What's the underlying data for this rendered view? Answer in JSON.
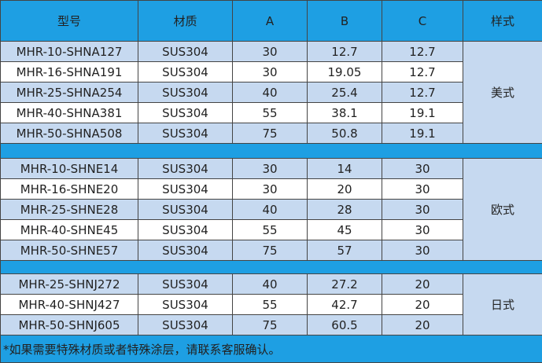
{
  "table": {
    "header": [
      "型号",
      "材质",
      "A",
      "B",
      "C",
      "样式"
    ],
    "groups": [
      {
        "style": "美式",
        "rows": [
          [
            "MHR-10-SHNA127",
            "SUS304",
            "30",
            "12.7",
            "12.7"
          ],
          [
            "MHR-16-SHNA191",
            "SUS304",
            "30",
            "19.05",
            "12.7"
          ],
          [
            "MHR-25-SHNA254",
            "SUS304",
            "40",
            "25.4",
            "12.7"
          ],
          [
            "MHR-40-SHNA381",
            "SUS304",
            "55",
            "38.1",
            "19.1"
          ],
          [
            "MHR-50-SHNA508",
            "SUS304",
            "75",
            "50.8",
            "19.1"
          ]
        ]
      },
      {
        "style": "欧式",
        "rows": [
          [
            "MHR-10-SHNE14",
            "SUS304",
            "30",
            "14",
            "30"
          ],
          [
            "MHR-16-SHNE20",
            "SUS304",
            "30",
            "20",
            "30"
          ],
          [
            "MHR-25-SHNE28",
            "SUS304",
            "40",
            "28",
            "30"
          ],
          [
            "MHR-40-SHNE45",
            "SUS304",
            "55",
            "45",
            "30"
          ],
          [
            "MHR-50-SHNE57",
            "SUS304",
            "75",
            "57",
            "30"
          ]
        ]
      },
      {
        "style": "日式",
        "rows": [
          [
            "MHR-25-SHNJ272",
            "SUS304",
            "40",
            "27.2",
            "20"
          ],
          [
            "MHR-40-SHNJ427",
            "SUS304",
            "55",
            "42.7",
            "20"
          ],
          [
            "MHR-50-SHNJ605",
            "SUS304",
            "75",
            "60.5",
            "20"
          ]
        ]
      }
    ],
    "note": "*如果需要特殊材质或者特殊涂层，请联系客服确认。"
  }
}
